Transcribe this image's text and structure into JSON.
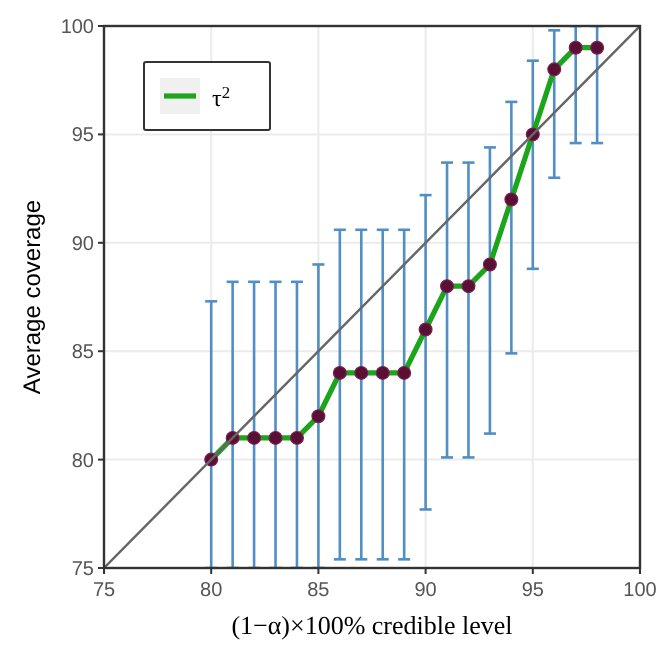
{
  "chart_data": {
    "type": "line",
    "xlabel": "(1−α)×100% credible level",
    "ylabel": "Average coverage",
    "x": [
      80,
      81,
      82,
      83,
      84,
      85,
      86,
      87,
      88,
      89,
      90,
      91,
      92,
      93,
      94,
      95,
      96,
      97,
      98
    ],
    "series": [
      {
        "name": "τ$^{2}$",
        "color": "#1aa51a",
        "marker": "circle",
        "values": [
          80,
          81,
          81,
          81,
          81,
          82,
          84,
          84,
          84,
          84,
          86,
          88,
          88,
          89,
          92,
          95,
          98,
          99,
          99
        ],
        "errors": [
          [
            75,
            87.3
          ],
          [
            75,
            88.2
          ],
          [
            75,
            88.2
          ],
          [
            75,
            88.2
          ],
          [
            75,
            88.2
          ],
          [
            75,
            89.0
          ],
          [
            75.4,
            90.6
          ],
          [
            75.4,
            90.6
          ],
          [
            75.4,
            90.6
          ],
          [
            75.4,
            90.6
          ],
          [
            77.7,
            92.2
          ],
          [
            80.1,
            93.7
          ],
          [
            80.1,
            93.7
          ],
          [
            81.2,
            94.4
          ],
          [
            84.9,
            96.5
          ],
          [
            88.8,
            98.4
          ],
          [
            93.0,
            99.8
          ],
          [
            94.6,
            100
          ],
          [
            94.6,
            100
          ]
        ]
      },
      {
        "type": "line",
        "color": "#666666",
        "x": [
          75,
          100
        ],
        "values": [
          75,
          100
        ],
        "marker": "none"
      }
    ],
    "xlim": [
      75,
      100
    ],
    "xticks": [
      75,
      80,
      85,
      90,
      95,
      100
    ],
    "ylim": [
      75,
      100
    ],
    "yticks": [
      75,
      80,
      85,
      90,
      95,
      100
    ],
    "grid": true,
    "legend": "top left"
  }
}
